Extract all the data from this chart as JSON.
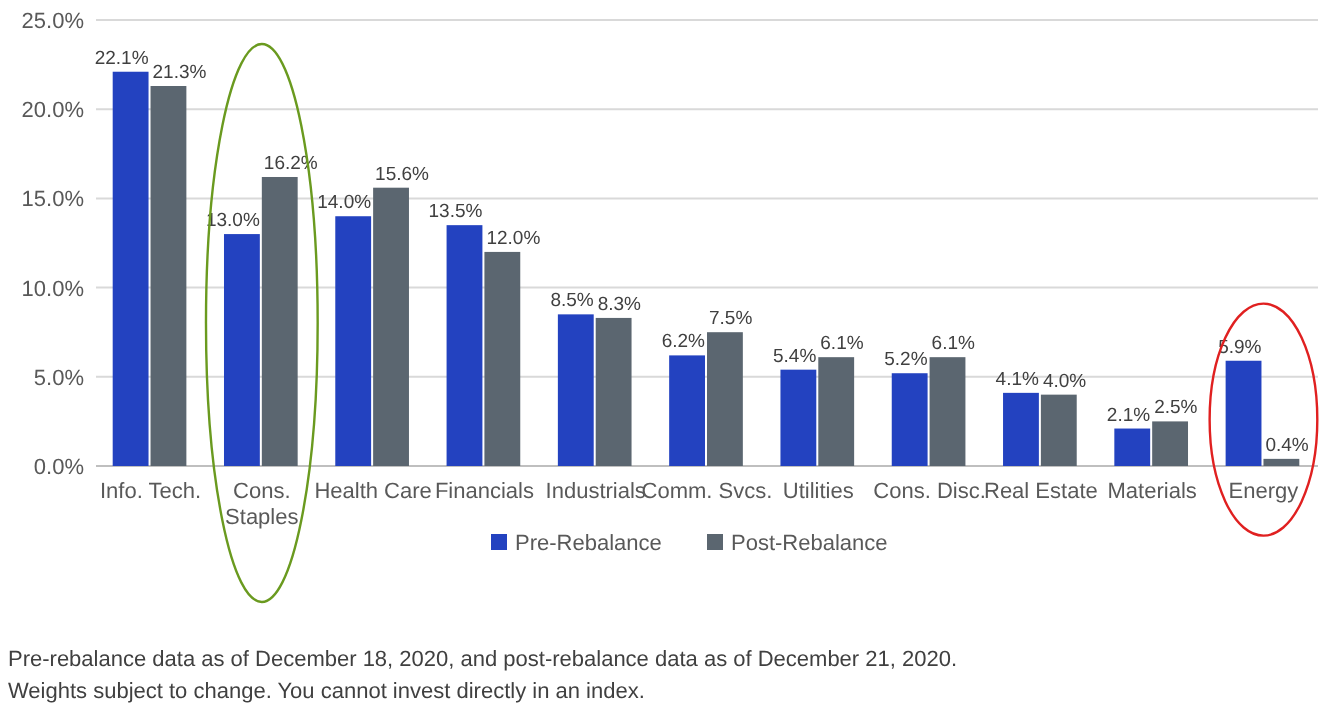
{
  "chart_data": {
    "type": "bar",
    "categories": [
      "Info. Tech.",
      "Cons. Staples",
      "Health Care",
      "Financials",
      "Industrials",
      "Comm. Svcs.",
      "Utilities",
      "Cons. Disc.",
      "Real Estate",
      "Materials",
      "Energy"
    ],
    "series": [
      {
        "name": "Pre-Rebalance",
        "color": "#2342c0",
        "values": [
          22.1,
          13.0,
          14.0,
          13.5,
          8.5,
          6.2,
          5.4,
          5.2,
          4.1,
          2.1,
          5.9
        ],
        "value_labels": [
          "22.1%",
          "13.0%",
          "14.0%",
          "13.5%",
          "8.5%",
          "6.2%",
          "5.4%",
          "5.2%",
          "4.1%",
          "2.1%",
          "5.9%"
        ]
      },
      {
        "name": "Post-Rebalance",
        "color": "#5b6670",
        "values": [
          21.3,
          16.2,
          15.6,
          12.0,
          8.3,
          7.5,
          6.1,
          6.1,
          4.0,
          2.5,
          0.4
        ],
        "value_labels": [
          "21.3%",
          "16.2%",
          "15.6%",
          "12.0%",
          "8.3%",
          "7.5%",
          "6.1%",
          "6.1%",
          "4.0%",
          "2.5%",
          "0.4%"
        ]
      }
    ],
    "ylim": [
      0,
      25
    ],
    "yticks": [
      {
        "value": 0,
        "label": "0.0%"
      },
      {
        "value": 5,
        "label": "5.0%"
      },
      {
        "value": 10,
        "label": "10.0%"
      },
      {
        "value": 15,
        "label": "15.0%"
      },
      {
        "value": 20,
        "label": "20.0%"
      },
      {
        "value": 25,
        "label": "25.0%"
      }
    ],
    "grid": "y",
    "legend": "bottom",
    "annotations": [
      "Pre-rebalance data as of December 18, 2020, and post-rebalance data as of December 21, 2020.",
      "Weights subject to change. You cannot invest directly in an index."
    ]
  }
}
